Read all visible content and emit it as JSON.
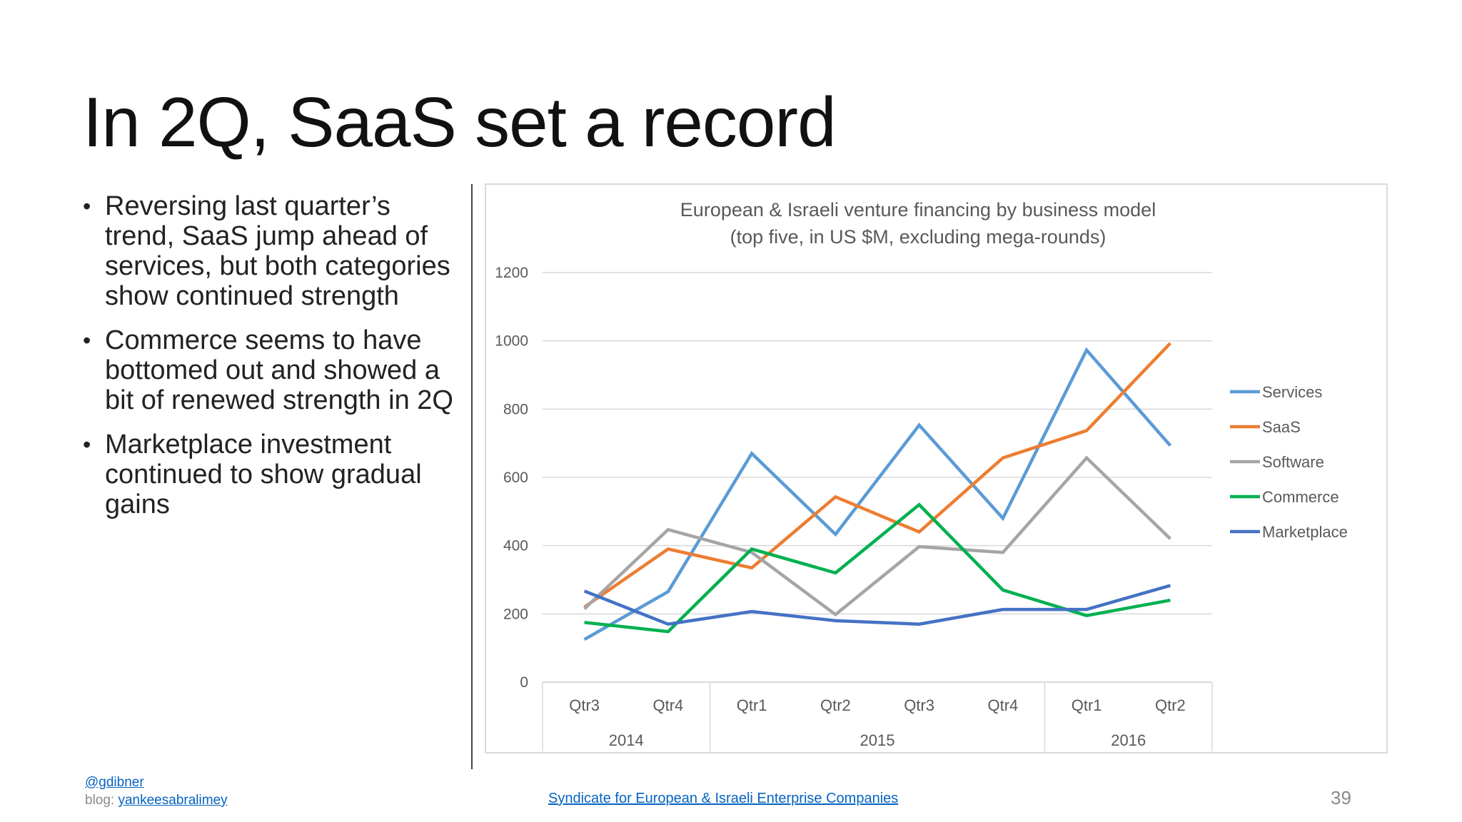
{
  "slide": {
    "title": "In 2Q, SaaS set a record",
    "bullets": [
      "Reversing last quarter’s trend, SaaS jump ahead of services, but both categories show continued strength",
      "Commerce seems to have bottomed out and showed a bit of renewed strength in 2Q",
      "Marketplace investment continued to show gradual gains"
    ],
    "bullet_glyph": "•",
    "footer": {
      "handle": "@gdibner",
      "blog_prefix": "blog:",
      "blog_link": "yankeesabralimey",
      "center_link": "Syndicate for European & Israeli Enterprise Companies",
      "page_number": "39"
    }
  },
  "chart_data": {
    "type": "line",
    "title": "European & Israeli venture financing by business model",
    "subtitle": "(top five, in US $M, excluding mega-rounds)",
    "categories": [
      "Qtr3",
      "Qtr4",
      "Qtr1",
      "Qtr2",
      "Qtr3",
      "Qtr4",
      "Qtr1",
      "Qtr2"
    ],
    "year_groups": [
      {
        "label": "2014",
        "span": 2
      },
      {
        "label": "2015",
        "span": 4
      },
      {
        "label": "2016",
        "span": 2
      }
    ],
    "ylim": [
      0,
      1200
    ],
    "yticks": [
      0,
      200,
      400,
      600,
      800,
      1000,
      1200
    ],
    "grid": true,
    "legend_position": "right",
    "series": [
      {
        "name": "Services",
        "color": "#5b9bd5",
        "values": [
          125,
          265,
          670,
          433,
          753,
          480,
          973,
          693
        ]
      },
      {
        "name": "SaaS",
        "color": "#ed7d31",
        "values": [
          220,
          390,
          335,
          543,
          440,
          657,
          737,
          993
        ]
      },
      {
        "name": "Software",
        "color": "#a5a5a5",
        "values": [
          215,
          447,
          380,
          198,
          397,
          380,
          657,
          420
        ]
      },
      {
        "name": "Commerce",
        "color": "#00b050",
        "values": [
          175,
          148,
          390,
          320,
          520,
          270,
          195,
          240
        ]
      },
      {
        "name": "Marketplace",
        "color": "#4472c4",
        "values": [
          267,
          170,
          207,
          180,
          170,
          213,
          213,
          283
        ]
      }
    ]
  }
}
